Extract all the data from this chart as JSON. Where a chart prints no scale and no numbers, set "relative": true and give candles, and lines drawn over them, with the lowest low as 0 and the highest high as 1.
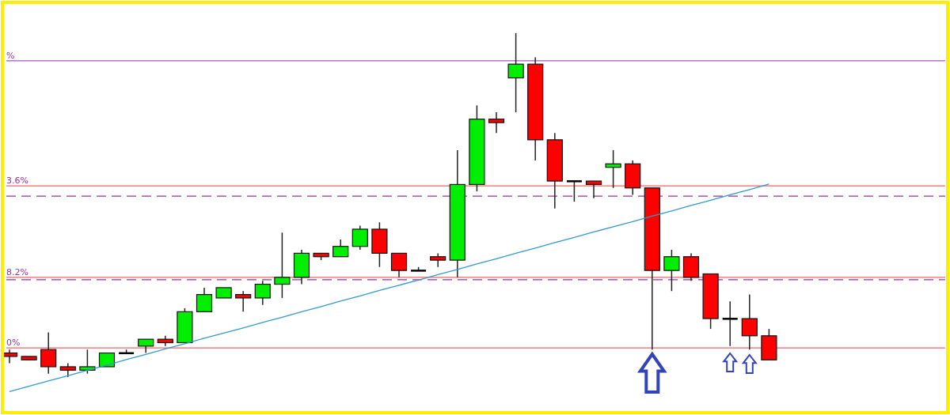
{
  "chart_data": {
    "type": "candlestick",
    "relative": true,
    "grid": false,
    "categories": [
      null,
      null,
      null,
      null,
      null,
      null,
      null,
      null,
      null,
      null,
      null,
      null,
      null,
      null,
      null,
      null,
      null,
      null,
      null,
      null,
      null,
      null,
      null,
      null,
      null,
      null,
      null,
      null,
      null,
      null,
      null,
      null,
      null,
      null,
      null,
      null,
      null,
      null,
      null,
      null
    ],
    "ohlc": [
      [
        0.07,
        0.08,
        0.04,
        0.06
      ],
      [
        0.06,
        0.06,
        0.05,
        0.05
      ],
      [
        0.08,
        0.13,
        0.01,
        0.03
      ],
      [
        0.03,
        0.04,
        0,
        0.02
      ],
      [
        0.02,
        0.08,
        0.01,
        0.03
      ],
      [
        0.03,
        0.07,
        0.03,
        0.07
      ],
      [
        0.07,
        0.08,
        0.07,
        0.07
      ],
      [
        0.09,
        0.11,
        0.07,
        0.11
      ],
      [
        0.11,
        0.12,
        0.09,
        0.1
      ],
      [
        0.1,
        0.2,
        0.1,
        0.19
      ],
      [
        0.19,
        0.26,
        0.19,
        0.24
      ],
      [
        0.23,
        0.26,
        0.23,
        0.26
      ],
      [
        0.24,
        0.25,
        0.19,
        0.23
      ],
      [
        0.23,
        0.28,
        0.21,
        0.27
      ],
      [
        0.27,
        0.42,
        0.23,
        0.29
      ],
      [
        0.29,
        0.37,
        0.27,
        0.36
      ],
      [
        0.36,
        0.36,
        0.34,
        0.35
      ],
      [
        0.35,
        0.4,
        0.35,
        0.38
      ],
      [
        0.38,
        0.44,
        0.37,
        0.43
      ],
      [
        0.43,
        0.45,
        0.32,
        0.36
      ],
      [
        0.36,
        0.36,
        0.29,
        0.31
      ],
      [
        0.31,
        0.32,
        0.31,
        0.31
      ],
      [
        0.35,
        0.36,
        0.32,
        0.34
      ],
      [
        0.34,
        0.66,
        0.29,
        0.56
      ],
      [
        0.56,
        0.79,
        0.54,
        0.75
      ],
      [
        0.75,
        0.77,
        0.71,
        0.74
      ],
      [
        0.87,
        1,
        0.77,
        0.91
      ],
      [
        0.91,
        0.93,
        0.63,
        0.69
      ],
      [
        0.69,
        0.71,
        0.49,
        0.57
      ],
      [
        0.57,
        0.57,
        0.51,
        0.57
      ],
      [
        0.57,
        0.57,
        0.52,
        0.56
      ],
      [
        0.61,
        0.66,
        0.55,
        0.62
      ],
      [
        0.62,
        0.63,
        0.53,
        0.55
      ],
      [
        0.55,
        0.55,
        0.08,
        0.31
      ],
      [
        0.31,
        0.37,
        0.25,
        0.35
      ],
      [
        0.35,
        0.36,
        0.28,
        0.29
      ],
      [
        0.3,
        0.3,
        0.14,
        0.17
      ],
      [
        0.17,
        0.22,
        0.09,
        0.17
      ],
      [
        0.17,
        0.24,
        0.08,
        0.12
      ],
      [
        0.12,
        0.14,
        0.05,
        0.05
      ]
    ],
    "colors": [
      "#ff0000",
      "#ff0000",
      "#ff0000",
      "#ff0000",
      "#00ee00",
      "#00ee00",
      "#000000",
      "#00ee00",
      "#ff0000",
      "#00ee00",
      "#00ee00",
      "#00ee00",
      "#ff0000",
      "#00ee00",
      "#00ee00",
      "#00ee00",
      "#ff0000",
      "#00ee00",
      "#00ee00",
      "#ff0000",
      "#ff0000",
      "#000000",
      "#ff0000",
      "#00ee00",
      "#00ee00",
      "#ff0000",
      "#00ee00",
      "#ff0000",
      "#ff0000",
      "#000000",
      "#ff0000",
      "#00ee00",
      "#ff0000",
      "#ff0000",
      "#00ee00",
      "#ff0000",
      "#ff0000",
      "#000000",
      "#ff0000",
      "#ff0000"
    ],
    "series": [
      {
        "type": "line",
        "color": "#3399cc",
        "values": [
          -0.042,
          -0.027,
          -0.011,
          0.004,
          0.02,
          0.035,
          0.051,
          0.066,
          0.082,
          0.097,
          0.113,
          0.128,
          0.143,
          0.159,
          0.174,
          0.19,
          0.205,
          0.221,
          0.236,
          0.252,
          0.267,
          0.282,
          0.298,
          0.313,
          0.329,
          0.344,
          0.36,
          0.375,
          0.391,
          0.406,
          0.422,
          0.437,
          0.452,
          0.468,
          0.483,
          0.499,
          0.514,
          0.53,
          0.545,
          0.561
        ]
      }
    ],
    "ref_lines": [
      {
        "axis": "y",
        "value": 0.92,
        "color": "#aa55bb",
        "line_style": "solid"
      },
      {
        "axis": "y",
        "value": 0.556,
        "color": "#ee6666",
        "line_style": "solid"
      },
      {
        "axis": "y",
        "value": 0.526,
        "color": "#993399",
        "line_style": "dashed"
      },
      {
        "axis": "y",
        "value": 0.29,
        "color": "#ee6666",
        "line_style": "solid"
      },
      {
        "axis": "y",
        "value": 0.283,
        "color": "#993399",
        "line_style": "dashed"
      },
      {
        "axis": "y",
        "value": 0.085,
        "color": "#ee6666",
        "line_style": "solid"
      }
    ],
    "annotations": [
      {
        "text": "%",
        "y": 0.92
      },
      {
        "text": "3.6%",
        "y": 0.556
      },
      {
        "text": "8.2%",
        "y": 0.29
      },
      {
        "text": "0%",
        "y": 0.085
      }
    ]
  }
}
